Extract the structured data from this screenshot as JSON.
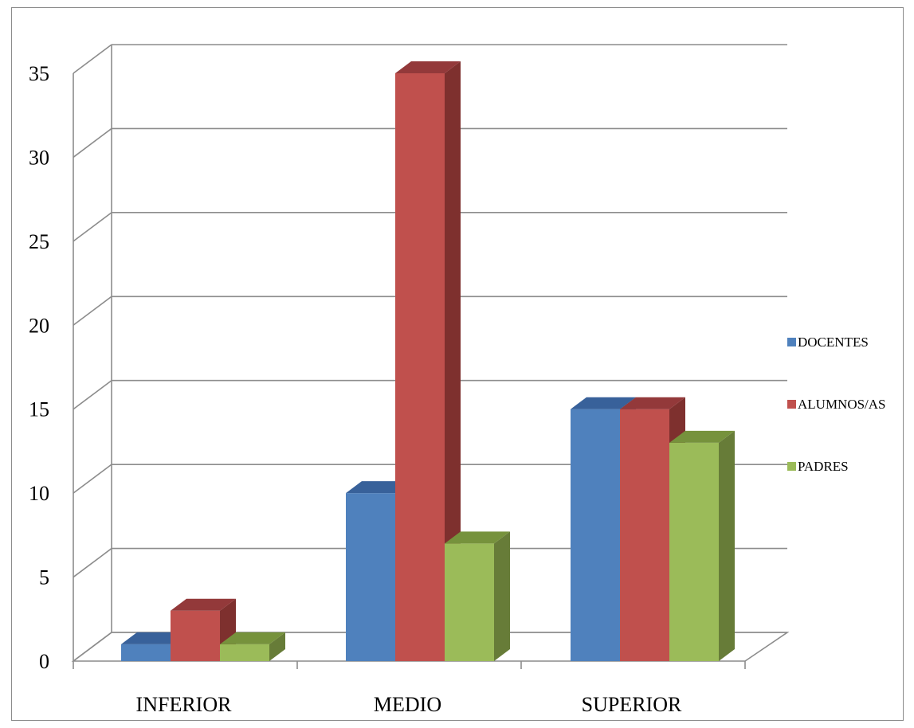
{
  "chart_data": {
    "type": "bar",
    "style": "3d-clustered-column",
    "categories": [
      "INFERIOR",
      "MEDIO",
      "SUPERIOR"
    ],
    "series": [
      {
        "name": "DOCENTES",
        "values": [
          1,
          10,
          15
        ],
        "color": "#4f81bd",
        "side": "#3a6595",
        "top": "#38619a"
      },
      {
        "name": "ALUMNOS/AS",
        "values": [
          3,
          35,
          15
        ],
        "color": "#c0504d",
        "side": "#7e302e",
        "top": "#93393a"
      },
      {
        "name": "PADRES",
        "values": [
          1,
          7,
          13
        ],
        "color": "#9bbb59",
        "side": "#677c38",
        "top": "#76923c"
      }
    ],
    "ylim": [
      0,
      35
    ],
    "yticks": [
      0,
      5,
      10,
      15,
      20,
      25,
      30,
      35
    ],
    "grid": true,
    "legend": "right"
  }
}
